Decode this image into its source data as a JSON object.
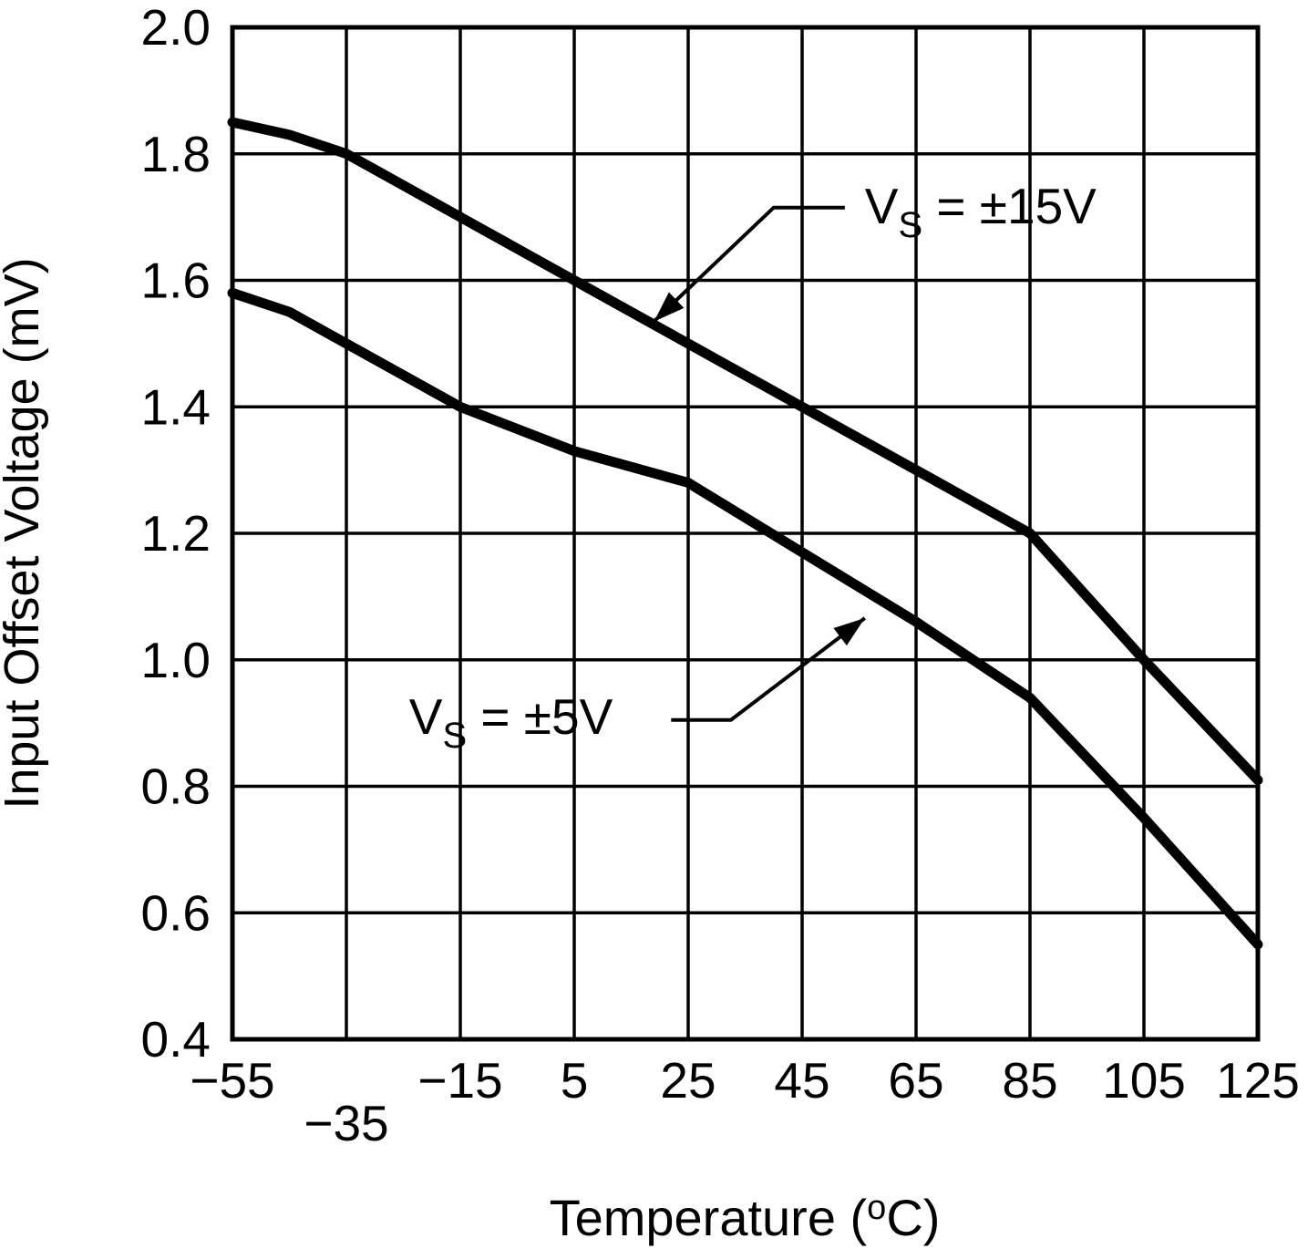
{
  "page": {
    "background": "#ffffff",
    "ink_color": "#000000"
  },
  "chart_data": {
    "type": "line",
    "title": "",
    "xlabel": "Temperature (°C)",
    "xlabel_parts": [
      {
        "t": "Temperature ("
      },
      {
        "t": "o",
        "sup": true
      },
      {
        "t": "C)"
      }
    ],
    "ylabel": "Input Offset Voltage (mV)",
    "xlim": [
      -55,
      125
    ],
    "ylim": [
      0.4,
      2.0
    ],
    "grid": true,
    "legend_position": "none",
    "x_ticks": [
      {
        "value": -55,
        "label": "−55",
        "row": 0
      },
      {
        "value": -35,
        "label": "−35",
        "row": 1
      },
      {
        "value": -15,
        "label": "−15",
        "row": 0
      },
      {
        "value": 5,
        "label": "5",
        "row": 0
      },
      {
        "value": 25,
        "label": "25",
        "row": 0
      },
      {
        "value": 45,
        "label": "45",
        "row": 0
      },
      {
        "value": 65,
        "label": "65",
        "row": 0
      },
      {
        "value": 85,
        "label": "85",
        "row": 0
      },
      {
        "value": 105,
        "label": "105",
        "row": 0
      },
      {
        "value": 125,
        "label": "125",
        "row": 0
      }
    ],
    "y_ticks": [
      {
        "value": 2.0,
        "label": "2.0"
      },
      {
        "value": 1.8,
        "label": "1.8"
      },
      {
        "value": 1.6,
        "label": "1.6"
      },
      {
        "value": 1.4,
        "label": "1.4"
      },
      {
        "value": 1.2,
        "label": "1.2"
      },
      {
        "value": 1.0,
        "label": "1.0"
      },
      {
        "value": 0.8,
        "label": "0.8"
      },
      {
        "value": 0.6,
        "label": "0.6"
      },
      {
        "value": 0.4,
        "label": "0.4"
      }
    ],
    "series": [
      {
        "name": "VS = ±15V",
        "x": [
          -55,
          -45,
          -35,
          -15,
          5,
          25,
          45,
          65,
          85,
          105,
          125
        ],
        "y": [
          1.85,
          1.83,
          1.8,
          1.7,
          1.6,
          1.5,
          1.4,
          1.3,
          1.2,
          1.0,
          0.81
        ]
      },
      {
        "name": "VS = ±5V",
        "x": [
          -55,
          -45,
          -35,
          -15,
          5,
          25,
          45,
          65,
          85,
          105,
          125
        ],
        "y": [
          1.58,
          1.55,
          1.5,
          1.4,
          1.33,
          1.28,
          1.17,
          1.06,
          0.94,
          0.75,
          0.55
        ]
      }
    ],
    "annotations": [
      {
        "label": "VS = ±15V",
        "parts": [
          {
            "t": "V"
          },
          {
            "t": "S",
            "sub": true
          },
          {
            "t": " = ±15V"
          }
        ],
        "text_x": 56,
        "text_y": 1.69,
        "anchor": "start",
        "arrow": [
          [
            52.5,
            1.715
          ],
          [
            40,
            1.715
          ],
          [
            19,
            1.535
          ]
        ]
      },
      {
        "label": "VS = ±5V",
        "parts": [
          {
            "t": "V"
          },
          {
            "t": "S",
            "sub": true
          },
          {
            "t": " = ±5V"
          }
        ],
        "text_x": -24,
        "text_y": 0.883,
        "anchor": "start",
        "arrow": [
          [
            22,
            0.905
          ],
          [
            32.5,
            0.905
          ],
          [
            56,
            1.066
          ]
        ]
      }
    ]
  }
}
